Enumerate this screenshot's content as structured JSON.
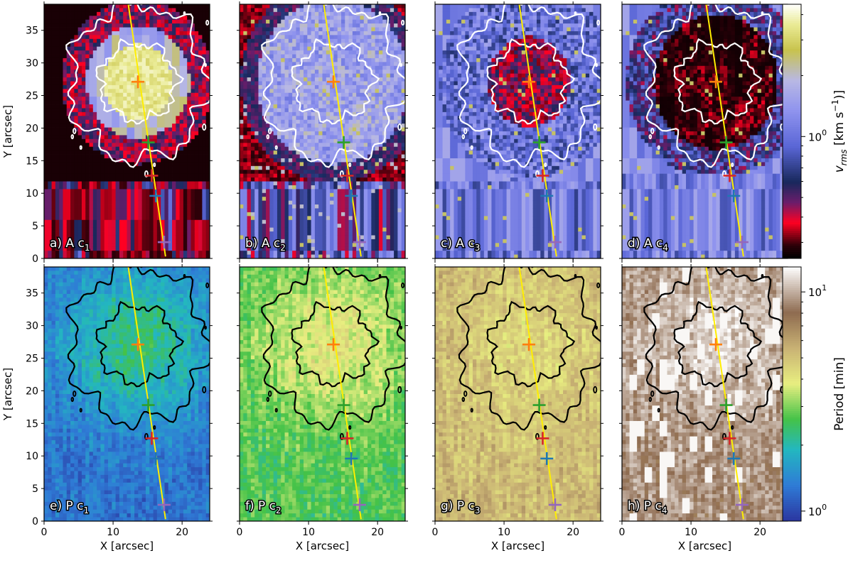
{
  "figure": {
    "colors": {
      "trajectory": "#ffee00",
      "contour_top": "#ffffff",
      "contour_bottom": "#000000",
      "markers": [
        "#ff7f0e",
        "#2ca02c",
        "#d62728",
        "#1f77b4",
        "#9467bd"
      ]
    }
  },
  "chart_data": [
    {
      "type": "heatmap",
      "id": "a",
      "label": "a) A c",
      "label_sub": "1",
      "quantity": "amplitude",
      "colormap": "amplitude",
      "x_ticks": [
        "0",
        "10",
        "20"
      ],
      "y_ticks": [
        "0",
        "5",
        "10",
        "15",
        "20",
        "25",
        "30",
        "35"
      ],
      "xlabel": "",
      "ylabel": "Y [arcsec]",
      "xlim": [
        0,
        24
      ],
      "ylim": [
        0,
        39
      ],
      "emission": "core",
      "path": [
        [
          12.2,
          39
        ],
        [
          17.6,
          0.3
        ]
      ],
      "markers": [
        {
          "x": 13.6,
          "y": 27.1
        },
        {
          "x": 15.1,
          "y": 17.8
        },
        {
          "x": 15.6,
          "y": 12.7
        },
        {
          "x": 16.2,
          "y": 9.6
        },
        {
          "x": 17.4,
          "y": 2.5
        }
      ]
    },
    {
      "type": "heatmap",
      "id": "b",
      "label": "b) A c",
      "label_sub": "2",
      "quantity": "amplitude",
      "colormap": "amplitude",
      "x_ticks": [
        "0",
        "10",
        "20"
      ],
      "y_ticks": [],
      "xlabel": "",
      "ylabel": "",
      "xlim": [
        0,
        24
      ],
      "ylim": [
        0,
        39
      ],
      "emission": "broad",
      "path": [
        [
          12.2,
          39
        ],
        [
          17.6,
          0.3
        ]
      ],
      "markers": [
        {
          "x": 13.6,
          "y": 27.1
        },
        {
          "x": 15.1,
          "y": 17.8
        },
        {
          "x": 15.6,
          "y": 12.7
        },
        {
          "x": 16.2,
          "y": 9.6
        },
        {
          "x": 17.4,
          "y": 2.5
        }
      ]
    },
    {
      "type": "heatmap",
      "id": "c",
      "label": "c) A c",
      "label_sub": "3",
      "quantity": "amplitude",
      "colormap": "amplitude",
      "x_ticks": [
        "0",
        "10",
        "20"
      ],
      "y_ticks": [],
      "xlabel": "",
      "ylabel": "",
      "xlim": [
        0,
        24
      ],
      "ylim": [
        0,
        39
      ],
      "emission": "ring",
      "path": [
        [
          12.2,
          39
        ],
        [
          17.6,
          0.3
        ]
      ],
      "markers": [
        {
          "x": 13.6,
          "y": 27.1
        },
        {
          "x": 15.1,
          "y": 17.8
        },
        {
          "x": 15.6,
          "y": 12.7
        },
        {
          "x": 16.2,
          "y": 9.6
        },
        {
          "x": 17.4,
          "y": 2.5
        }
      ]
    },
    {
      "type": "heatmap",
      "id": "d",
      "label": "d) A c",
      "label_sub": "4",
      "quantity": "amplitude",
      "colormap": "amplitude",
      "x_ticks": [
        "0",
        "10",
        "20"
      ],
      "y_ticks": [],
      "xlabel": "",
      "ylabel": "",
      "xlim": [
        0,
        24
      ],
      "ylim": [
        0,
        39
      ],
      "emission": "outer",
      "path": [
        [
          12.2,
          39
        ],
        [
          17.6,
          0.3
        ]
      ],
      "markers": [
        {
          "x": 13.6,
          "y": 27.1
        },
        {
          "x": 15.1,
          "y": 17.8
        },
        {
          "x": 15.6,
          "y": 12.7
        },
        {
          "x": 16.2,
          "y": 9.6
        },
        {
          "x": 17.4,
          "y": 2.5
        }
      ]
    },
    {
      "type": "heatmap",
      "id": "e",
      "label": "e) P c",
      "label_sub": "1",
      "quantity": "period",
      "colormap": "period",
      "x_ticks": [
        "0",
        "10",
        "20"
      ],
      "y_ticks": [
        "0",
        "5",
        "10",
        "15",
        "20",
        "25",
        "30",
        "35"
      ],
      "xlabel": "X [arcsec]",
      "ylabel": "Y [arcsec]",
      "xlim": [
        0,
        24
      ],
      "ylim": [
        0,
        39
      ],
      "period_base": 0.12,
      "period_center": 0.36,
      "path": [
        [
          12.2,
          39
        ],
        [
          17.6,
          0.3
        ]
      ],
      "markers": [
        {
          "x": 13.6,
          "y": 27.1
        },
        {
          "x": 15.1,
          "y": 17.8
        },
        {
          "x": 15.6,
          "y": 12.7
        },
        {
          "x": 16.2,
          "y": 9.6
        },
        {
          "x": 17.4,
          "y": 2.5
        }
      ]
    },
    {
      "type": "heatmap",
      "id": "f",
      "label": "f) P c",
      "label_sub": "2",
      "quantity": "period",
      "colormap": "period",
      "x_ticks": [
        "0",
        "10",
        "20"
      ],
      "y_ticks": [],
      "xlabel": "X [arcsec]",
      "ylabel": "",
      "xlim": [
        0,
        24
      ],
      "ylim": [
        0,
        39
      ],
      "period_base": 0.4,
      "period_center": 0.56,
      "path": [
        [
          12.2,
          39
        ],
        [
          17.6,
          0.3
        ]
      ],
      "markers": [
        {
          "x": 13.6,
          "y": 27.1
        },
        {
          "x": 15.1,
          "y": 17.8
        },
        {
          "x": 15.6,
          "y": 12.7
        },
        {
          "x": 16.2,
          "y": 9.6
        },
        {
          "x": 17.4,
          "y": 2.5
        }
      ]
    },
    {
      "type": "heatmap",
      "id": "g",
      "label": "g) P c",
      "label_sub": "3",
      "quantity": "period",
      "colormap": "period",
      "x_ticks": [
        "0",
        "10",
        "20"
      ],
      "y_ticks": [],
      "xlabel": "X [arcsec]",
      "ylabel": "",
      "xlim": [
        0,
        24
      ],
      "ylim": [
        0,
        39
      ],
      "period_base": 0.66,
      "period_center": 0.6,
      "path": [
        [
          12.2,
          39
        ],
        [
          17.6,
          0.3
        ]
      ],
      "markers": [
        {
          "x": 13.6,
          "y": 27.1
        },
        {
          "x": 15.1,
          "y": 17.8
        },
        {
          "x": 15.6,
          "y": 12.7
        },
        {
          "x": 16.2,
          "y": 9.6
        },
        {
          "x": 17.4,
          "y": 2.5
        }
      ]
    },
    {
      "type": "heatmap",
      "id": "h",
      "label": "h) P c",
      "label_sub": "4",
      "quantity": "period",
      "colormap": "period",
      "x_ticks": [
        "0",
        "10",
        "20"
      ],
      "y_ticks": [],
      "xlabel": "X [arcsec]",
      "ylabel": "",
      "xlim": [
        0,
        24
      ],
      "ylim": [
        0,
        39
      ],
      "period_base": 0.86,
      "period_center": 0.95,
      "path": [
        [
          12.2,
          39
        ],
        [
          17.6,
          0.3
        ]
      ],
      "markers": [
        {
          "x": 13.6,
          "y": 27.1
        },
        {
          "x": 15.1,
          "y": 17.8
        },
        {
          "x": 15.6,
          "y": 12.7
        },
        {
          "x": 16.2,
          "y": 9.6
        },
        {
          "x": 17.4,
          "y": 2.5
        }
      ]
    }
  ],
  "colorbars": [
    {
      "id": "vrms",
      "label": "v",
      "label_sub": "rms",
      "label_tail": " [km s",
      "label_sup": "−1",
      "label_end": ")]",
      "scale": "log",
      "tick_label": "10",
      "tick_exp": "0",
      "tick_value": 1.0,
      "range": [
        0.25,
        4.5
      ],
      "colormap": "amplitude"
    },
    {
      "id": "period",
      "label": "Period [min]",
      "scale": "log",
      "ticks": [
        {
          "label": "10",
          "exp": "0",
          "value": 1.0
        },
        {
          "label": "10",
          "exp": "1",
          "value": 10.0
        }
      ],
      "range": [
        0.9,
        13
      ],
      "colormap": "period"
    }
  ]
}
